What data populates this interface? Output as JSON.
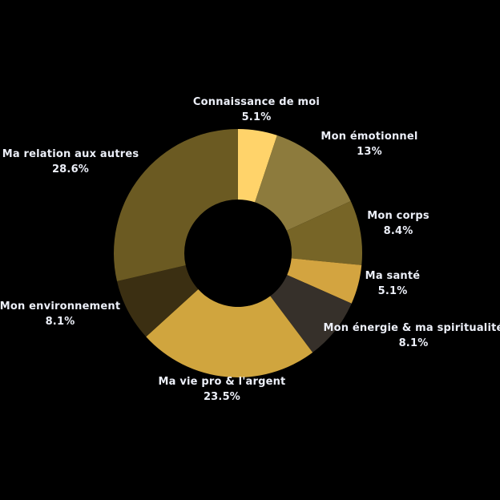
{
  "background_color": "#000000",
  "label_text_color": "#ECEFF8",
  "chart_data": {
    "type": "pie",
    "subtype": "donut",
    "title": "",
    "legend_position": "none",
    "labels_position": "outside",
    "start_angle_deg": -90,
    "direction": "clockwise",
    "inner_radius_ratio": 0.43,
    "categories": [
      "Connaissance de moi",
      "Mon émotionnel",
      "Mon corps",
      "Ma santé",
      "Mon énergie & ma spiritualité",
      "Ma vie pro & l'argent",
      "Mon environnement",
      "Ma relation aux autres"
    ],
    "values": [
      5.1,
      13,
      8.4,
      5.1,
      8.1,
      23.5,
      8.1,
      28.6
    ],
    "value_labels": [
      "5.1%",
      "13%",
      "8.4%",
      "5.1%",
      "8.1%",
      "23.5%",
      "8.1%",
      "28.6%"
    ],
    "colors": [
      "#FFD36A",
      "#8D7B3D",
      "#776527",
      "#D3A440",
      "#36302A",
      "#D0A53E",
      "#3B2F12",
      "#6B5A22"
    ]
  }
}
